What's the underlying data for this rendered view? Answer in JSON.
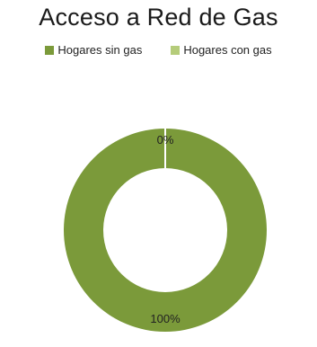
{
  "chart_data": {
    "type": "pie",
    "title": "Acceso a Red de Gas",
    "categories": [
      "Hogares sin gas",
      "Hogares con gas"
    ],
    "values": [
      100,
      0
    ],
    "data_labels": [
      "100%",
      "0%"
    ],
    "colors": [
      "#7b9a3a",
      "#b5cc7a"
    ],
    "donut": true,
    "legend": "top"
  }
}
